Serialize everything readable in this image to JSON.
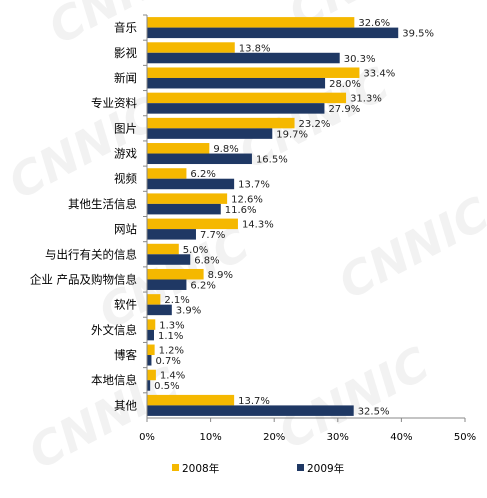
{
  "chart_data": {
    "type": "bar",
    "orientation": "horizontal",
    "categories": [
      "音乐",
      "影视",
      "新闻",
      "专业资料",
      "图片",
      "游戏",
      "视频",
      "其他生活信息",
      "网站",
      "与出行有关的信息",
      "企业 产品及购物信息",
      "软件",
      "外文信息",
      "博客",
      "本地信息",
      "其他"
    ],
    "series": [
      {
        "name": "2008年",
        "color": "#F5B800",
        "values": [
          32.6,
          13.8,
          33.4,
          31.3,
          23.2,
          9.8,
          6.2,
          12.6,
          14.3,
          5.0,
          8.9,
          2.1,
          1.3,
          1.2,
          1.4,
          13.7
        ],
        "labels": [
          "32.6%",
          "13.8%",
          "33.4%",
          "31.3%",
          "23.2%",
          "9.8%",
          "6.2%",
          "12.6%",
          "14.3%",
          "5.0%",
          "8.9%",
          "2.1%",
          "1.3%",
          "1.2%",
          "1.4%",
          "13.7%"
        ]
      },
      {
        "name": "2009年",
        "color": "#1F3864",
        "values": [
          39.5,
          30.3,
          28.0,
          27.9,
          19.7,
          16.5,
          13.7,
          11.6,
          7.7,
          6.8,
          6.2,
          3.9,
          1.1,
          0.7,
          0.5,
          32.5
        ],
        "labels": [
          "39.5%",
          "30.3%",
          "28.0%",
          "27.9%",
          "19.7%",
          "16.5%",
          "13.7%",
          "11.6%",
          "7.7%",
          "6.8%",
          "6.2%",
          "3.9%",
          "1.1%",
          "0.7%",
          "0.5%",
          "32.5%"
        ]
      }
    ],
    "xlim": [
      0,
      50
    ],
    "xticks": [
      "0%",
      "10%",
      "20%",
      "30%",
      "40%",
      "50%"
    ],
    "grid": false,
    "legend": "bottom",
    "watermark": "CNNIC"
  }
}
